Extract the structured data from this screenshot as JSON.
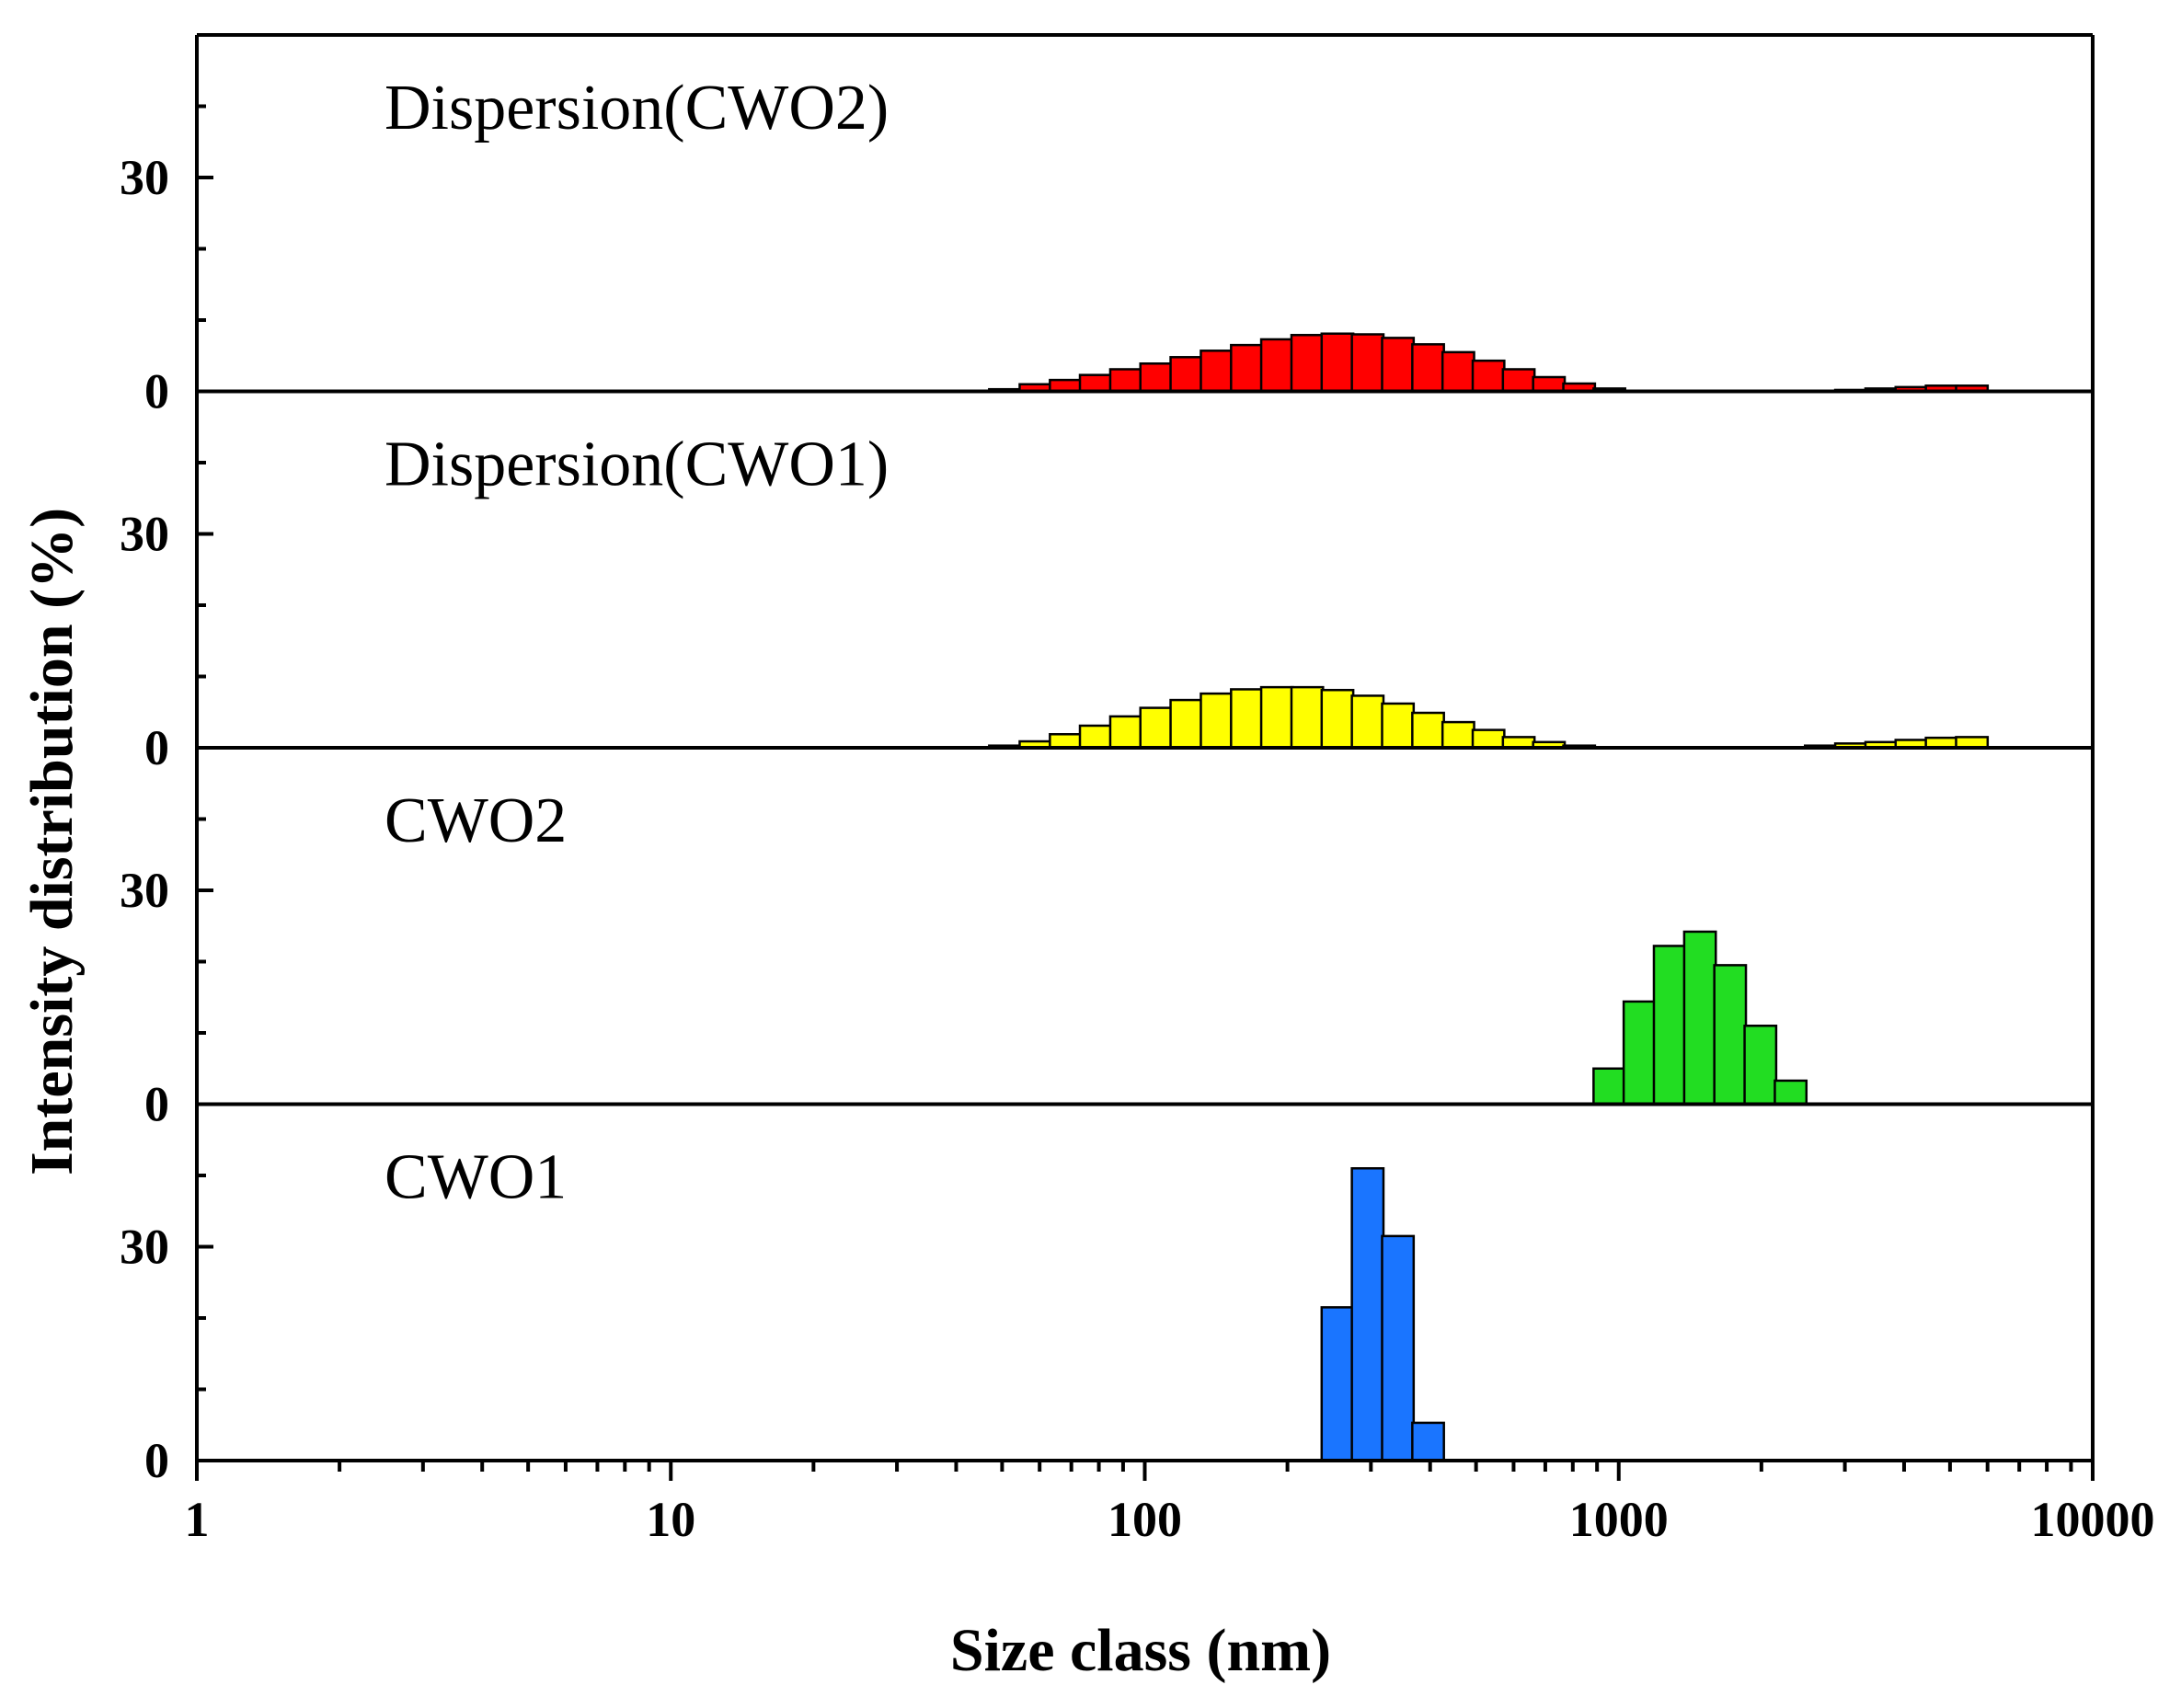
{
  "chart_data": {
    "type": "bar",
    "xlabel": "Size class (nm)",
    "ylabel": "Intensity distribution (%)",
    "xscale": "log",
    "xlim": [
      1,
      10000
    ],
    "x_tick_labels": [
      "1",
      "10",
      "100",
      "1000",
      "10000"
    ],
    "panels": [
      {
        "name": "Dispersion(CWO2)",
        "color": "#ff0000",
        "ylim": [
          0,
          50
        ],
        "y_tick_labels": [
          "0",
          "30"
        ],
        "bins": [
          {
            "x": 50.7,
            "y": 0.3
          },
          {
            "x": 58.8,
            "y": 1.0
          },
          {
            "x": 68.1,
            "y": 1.6
          },
          {
            "x": 78.8,
            "y": 2.3
          },
          {
            "x": 91.3,
            "y": 3.1
          },
          {
            "x": 105.7,
            "y": 3.9
          },
          {
            "x": 122.4,
            "y": 4.8
          },
          {
            "x": 141.8,
            "y": 5.7
          },
          {
            "x": 164.2,
            "y": 6.5
          },
          {
            "x": 190.1,
            "y": 7.3
          },
          {
            "x": 220.2,
            "y": 7.9
          },
          {
            "x": 255.0,
            "y": 8.1
          },
          {
            "x": 295.3,
            "y": 8.0
          },
          {
            "x": 342.0,
            "y": 7.5
          },
          {
            "x": 396.1,
            "y": 6.6
          },
          {
            "x": 458.7,
            "y": 5.5
          },
          {
            "x": 531.2,
            "y": 4.3
          },
          {
            "x": 615.1,
            "y": 3.1
          },
          {
            "x": 712.4,
            "y": 2.0
          },
          {
            "x": 825.0,
            "y": 1.1
          },
          {
            "x": 955.4,
            "y": 0.4
          },
          {
            "x": 3091,
            "y": 0.2
          },
          {
            "x": 3580,
            "y": 0.4
          },
          {
            "x": 4145,
            "y": 0.6
          },
          {
            "x": 4801,
            "y": 0.8
          },
          {
            "x": 5560,
            "y": 0.8
          }
        ]
      },
      {
        "name": "Dispersion(CWO1)",
        "color": "#ffff00",
        "ylim": [
          0,
          50
        ],
        "y_tick_labels": [
          "0",
          "30"
        ],
        "bins": [
          {
            "x": 50.7,
            "y": 0.3
          },
          {
            "x": 58.8,
            "y": 0.9
          },
          {
            "x": 68.1,
            "y": 1.9
          },
          {
            "x": 78.8,
            "y": 3.1
          },
          {
            "x": 91.3,
            "y": 4.4
          },
          {
            "x": 105.7,
            "y": 5.6
          },
          {
            "x": 122.4,
            "y": 6.7
          },
          {
            "x": 141.8,
            "y": 7.6
          },
          {
            "x": 164.2,
            "y": 8.2
          },
          {
            "x": 190.1,
            "y": 8.5
          },
          {
            "x": 220.2,
            "y": 8.5
          },
          {
            "x": 255.0,
            "y": 8.1
          },
          {
            "x": 295.3,
            "y": 7.3
          },
          {
            "x": 342.0,
            "y": 6.2
          },
          {
            "x": 396.1,
            "y": 4.9
          },
          {
            "x": 458.7,
            "y": 3.6
          },
          {
            "x": 531.2,
            "y": 2.5
          },
          {
            "x": 615.1,
            "y": 1.5
          },
          {
            "x": 712.4,
            "y": 0.8
          },
          {
            "x": 825.0,
            "y": 0.3
          },
          {
            "x": 2669,
            "y": 0.3
          },
          {
            "x": 3091,
            "y": 0.6
          },
          {
            "x": 3580,
            "y": 0.8
          },
          {
            "x": 4145,
            "y": 1.1
          },
          {
            "x": 4801,
            "y": 1.4
          },
          {
            "x": 5560,
            "y": 1.5
          }
        ]
      },
      {
        "name": "CWO2",
        "color": "#22dd22",
        "ylim": [
          0,
          50
        ],
        "y_tick_labels": [
          "0",
          "30"
        ],
        "bins": [
          {
            "x": 955.4,
            "y": 5.0
          },
          {
            "x": 1106,
            "y": 14.4
          },
          {
            "x": 1281,
            "y": 22.2
          },
          {
            "x": 1484,
            "y": 24.2
          },
          {
            "x": 1718,
            "y": 19.5
          },
          {
            "x": 1990,
            "y": 11.0
          },
          {
            "x": 2305,
            "y": 3.3
          }
        ]
      },
      {
        "name": "CWO1",
        "color": "#1a75ff",
        "ylim": [
          0,
          50
        ],
        "y_tick_labels": [
          "0",
          "30"
        ],
        "bins": [
          {
            "x": 255.0,
            "y": 21.5
          },
          {
            "x": 295.3,
            "y": 41.0
          },
          {
            "x": 342.0,
            "y": 31.5
          },
          {
            "x": 396.1,
            "y": 5.3
          }
        ]
      }
    ]
  }
}
